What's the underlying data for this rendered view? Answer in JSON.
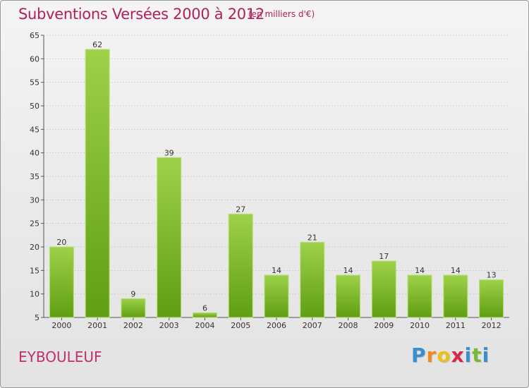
{
  "header": {
    "title": "Subventions Versées 2000 à 2012",
    "unit_note": "(en milliers d'€)"
  },
  "footer": {
    "place": "EYBOULEUF",
    "logo_letters": [
      "P",
      "r",
      "o",
      "x",
      "i",
      "t",
      "i"
    ],
    "logo_colors": [
      "#3a8fd0",
      "#f08a1c",
      "#e8c21a",
      "#d8284a",
      "#3a8fd0",
      "#7ab83a",
      "#3a8fd0"
    ]
  },
  "colors": {
    "title": "#b0205a",
    "bar_top": "#9ed14a",
    "bar_bottom": "#5f9e12",
    "grid": "#cfcfcf"
  },
  "chart_data": {
    "type": "bar",
    "title": "Subventions Versées 2000 à 2012",
    "subtitle": "(en milliers d'€)",
    "categories": [
      "2000",
      "2001",
      "2002",
      "2003",
      "2004",
      "2005",
      "2006",
      "2007",
      "2008",
      "2009",
      "2010",
      "2011",
      "2012"
    ],
    "values": [
      20,
      62,
      9,
      39,
      6,
      27,
      14,
      21,
      14,
      17,
      14,
      14,
      13
    ],
    "ylim": [
      5,
      65
    ],
    "yticks": [
      5,
      10,
      15,
      20,
      25,
      30,
      35,
      40,
      45,
      50,
      55,
      60,
      65
    ],
    "grid": true,
    "data_labels": true
  }
}
